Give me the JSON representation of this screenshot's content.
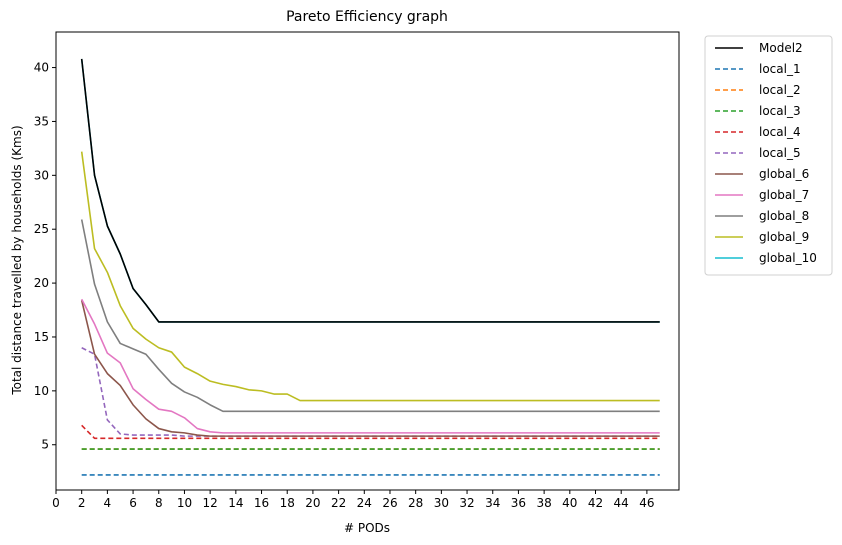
{
  "chart_data": {
    "type": "line",
    "title": "Pareto Efficiency graph",
    "xlabel": "# PODs",
    "ylabel": "Total distance travelled by households (Kms)",
    "xlim": [
      0,
      48.5
    ],
    "ylim": [
      0.8,
      43.3
    ],
    "xticks": [
      0,
      2,
      4,
      6,
      8,
      10,
      12,
      14,
      16,
      18,
      20,
      22,
      24,
      26,
      28,
      30,
      32,
      34,
      36,
      38,
      40,
      42,
      44,
      46
    ],
    "yticks": [
      5,
      10,
      15,
      20,
      25,
      30,
      35,
      40
    ],
    "grid": false,
    "legend_position": "outside-top-right",
    "series": [
      {
        "name": "Model2",
        "color": "#000000",
        "dash": "solid",
        "x": [
          2,
          3,
          4,
          5,
          6,
          7,
          8,
          47
        ],
        "y": [
          40.8,
          30.0,
          25.3,
          22.7,
          19.5,
          18.0,
          16.4,
          16.4
        ]
      },
      {
        "name": "local_1",
        "color": "#1f77b4",
        "dash": "dashed",
        "x": [
          2,
          47
        ],
        "y": [
          2.2,
          2.2
        ]
      },
      {
        "name": "local_2",
        "color": "#ff7f0e",
        "dash": "dashed",
        "x": [
          2,
          47
        ],
        "y": [
          4.6,
          4.6
        ]
      },
      {
        "name": "local_3",
        "color": "#2ca02c",
        "dash": "dashed",
        "x": [
          2,
          47
        ],
        "y": [
          4.6,
          4.6
        ]
      },
      {
        "name": "local_4",
        "color": "#d62728",
        "dash": "dashed",
        "x": [
          2,
          3,
          4,
          47
        ],
        "y": [
          6.8,
          5.6,
          5.6,
          5.6
        ]
      },
      {
        "name": "local_5",
        "color": "#9467bd",
        "dash": "dashed",
        "x": [
          2,
          3,
          4,
          5,
          6,
          7,
          8,
          9,
          10,
          47
        ],
        "y": [
          14.0,
          13.4,
          7.3,
          6.0,
          5.9,
          5.9,
          5.9,
          5.9,
          5.8,
          5.8
        ]
      },
      {
        "name": "global_6",
        "color": "#8c564b",
        "dash": "solid",
        "x": [
          2,
          3,
          4,
          5,
          6,
          7,
          8,
          9,
          10,
          11,
          12,
          47
        ],
        "y": [
          18.4,
          13.4,
          11.6,
          10.5,
          8.7,
          7.4,
          6.5,
          6.2,
          6.1,
          5.9,
          5.8,
          5.8
        ]
      },
      {
        "name": "global_7",
        "color": "#e377c2",
        "dash": "solid",
        "x": [
          2,
          3,
          4,
          5,
          6,
          7,
          8,
          9,
          10,
          11,
          12,
          13,
          47
        ],
        "y": [
          18.5,
          16.2,
          13.5,
          12.6,
          10.2,
          9.2,
          8.3,
          8.1,
          7.5,
          6.5,
          6.2,
          6.1,
          6.1
        ]
      },
      {
        "name": "global_8",
        "color": "#7f7f7f",
        "dash": "solid",
        "x": [
          2,
          3,
          4,
          5,
          6,
          7,
          8,
          9,
          10,
          11,
          12,
          13,
          47
        ],
        "y": [
          25.9,
          19.9,
          16.4,
          14.4,
          13.9,
          13.4,
          12.0,
          10.7,
          9.9,
          9.4,
          8.7,
          8.1,
          8.1
        ]
      },
      {
        "name": "global_9",
        "color": "#bcbd22",
        "dash": "solid",
        "x": [
          2,
          3,
          4,
          5,
          6,
          7,
          8,
          9,
          10,
          11,
          12,
          13,
          14,
          15,
          16,
          17,
          18,
          19,
          47
        ],
        "y": [
          32.2,
          23.2,
          21.0,
          17.9,
          15.8,
          14.8,
          14.0,
          13.6,
          12.2,
          11.6,
          10.9,
          10.6,
          10.4,
          10.1,
          10.0,
          9.7,
          9.7,
          9.1,
          9.1
        ]
      },
      {
        "name": "global_10",
        "color": "#17becf",
        "dash": "solid",
        "x": [
          2,
          3,
          4,
          5,
          6,
          7,
          8,
          47
        ],
        "y": [
          40.8,
          30.0,
          25.3,
          22.7,
          19.5,
          18.0,
          16.4,
          16.4
        ]
      }
    ]
  }
}
